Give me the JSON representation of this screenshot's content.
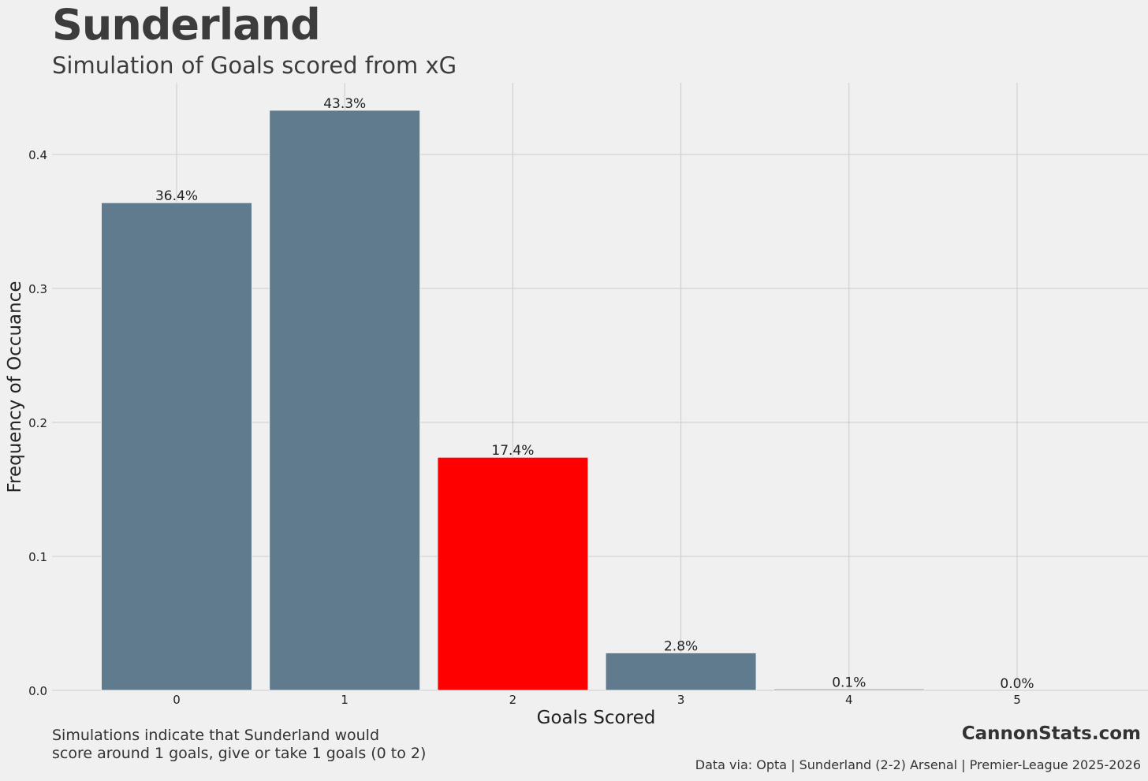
{
  "header": {
    "title": "Sunderland",
    "subtitle": "Simulation of Goals scored from xG"
  },
  "chart_data": {
    "type": "bar",
    "categories": [
      "0",
      "1",
      "2",
      "3",
      "4",
      "5"
    ],
    "values": [
      0.364,
      0.433,
      0.174,
      0.028,
      0.001,
      0.0
    ],
    "data_labels": [
      "36.4%",
      "43.3%",
      "17.4%",
      "2.8%",
      "0.1%",
      "0.0%"
    ],
    "xlabel": "Goals Scored",
    "ylabel": "Frequency of Occuance",
    "ylim": [
      0,
      0.45
    ],
    "yticks": [
      0.0,
      0.1,
      0.2,
      0.3,
      0.4
    ],
    "ytick_labels": [
      "0.0",
      "0.1",
      "0.2",
      "0.3",
      "0.4"
    ],
    "grid": true,
    "bar_color": "#607b8d",
    "highlight_color": "#ff0000",
    "highlight_index": 2
  },
  "footer": {
    "note_line1": "Simulations indicate that Sunderland would",
    "note_line2": "score around 1 goals, give or take 1 goals (0 to 2)",
    "brand": "CannonStats.com",
    "source": "Data via: Opta | Sunderland (2-2) Arsenal | Premier-League 2025-2026"
  }
}
